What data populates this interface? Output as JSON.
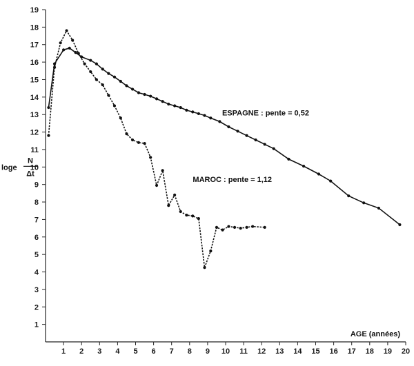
{
  "chart_data": {
    "type": "line",
    "title": "",
    "xlabel": "AGE (années)",
    "ylabel": "log_e N/Δt",
    "ylabel_parts": {
      "prefix": "loge",
      "numerator": "N",
      "denominator": "Δt"
    },
    "xlim": [
      0,
      20
    ],
    "ylim": [
      0,
      19
    ],
    "x_ticks": [
      1,
      2,
      3,
      4,
      5,
      6,
      7,
      8,
      9,
      10,
      11,
      12,
      13,
      14,
      15,
      16,
      17,
      18,
      19,
      20
    ],
    "y_ticks": [
      1,
      2,
      3,
      4,
      5,
      6,
      7,
      8,
      9,
      10,
      11,
      12,
      13,
      14,
      15,
      16,
      17,
      18,
      19
    ],
    "grid": false,
    "annotations": [
      {
        "series": "ESPAGNE",
        "text": "ESPAGNE : pente = 0,52"
      },
      {
        "series": "MAROC",
        "text": "MAROC : pente = 1,12"
      }
    ],
    "series": [
      {
        "name": "ESPAGNE",
        "style": "solid",
        "x": [
          0.17,
          0.5,
          1.0,
          1.33,
          1.67,
          2.0,
          2.5,
          2.83,
          3.17,
          3.5,
          3.83,
          4.17,
          4.5,
          4.83,
          5.17,
          5.5,
          5.83,
          6.17,
          6.5,
          6.83,
          7.17,
          7.5,
          7.83,
          8.17,
          8.5,
          8.83,
          9.17,
          9.67,
          10.17,
          10.67,
          11.17,
          11.67,
          12.17,
          12.67,
          13.5,
          14.33,
          15.17,
          15.83,
          16.83,
          17.67,
          18.5,
          19.67
        ],
        "y": [
          13.4,
          15.9,
          16.7,
          16.8,
          16.55,
          16.3,
          16.1,
          15.9,
          15.6,
          15.35,
          15.15,
          14.9,
          14.65,
          14.45,
          14.25,
          14.15,
          14.05,
          13.9,
          13.75,
          13.6,
          13.5,
          13.4,
          13.25,
          13.15,
          13.05,
          12.95,
          12.8,
          12.6,
          12.3,
          12.05,
          11.8,
          11.55,
          11.3,
          11.05,
          10.45,
          10.05,
          9.6,
          9.2,
          8.35,
          7.95,
          7.65,
          6.7
        ]
      },
      {
        "name": "MAROC",
        "style": "dashed",
        "x": [
          0.17,
          0.5,
          0.83,
          1.17,
          1.5,
          1.83,
          2.17,
          2.5,
          2.83,
          3.17,
          3.5,
          3.83,
          4.17,
          4.5,
          4.83,
          5.17,
          5.5,
          5.83,
          6.17,
          6.5,
          6.83,
          7.17,
          7.5,
          7.83,
          8.17,
          8.5,
          8.83,
          9.17,
          9.5,
          9.83,
          10.17,
          10.5,
          10.83,
          11.17,
          11.5,
          12.17
        ],
        "y": [
          11.8,
          15.7,
          17.1,
          17.8,
          17.25,
          16.5,
          15.9,
          15.45,
          15.0,
          14.7,
          14.1,
          13.5,
          12.8,
          11.9,
          11.55,
          11.4,
          11.35,
          10.55,
          8.95,
          9.8,
          7.8,
          8.4,
          7.45,
          7.25,
          7.2,
          7.05,
          4.25,
          5.2,
          6.55,
          6.4,
          6.6,
          6.55,
          6.5,
          6.55,
          6.6,
          6.55
        ]
      }
    ]
  }
}
